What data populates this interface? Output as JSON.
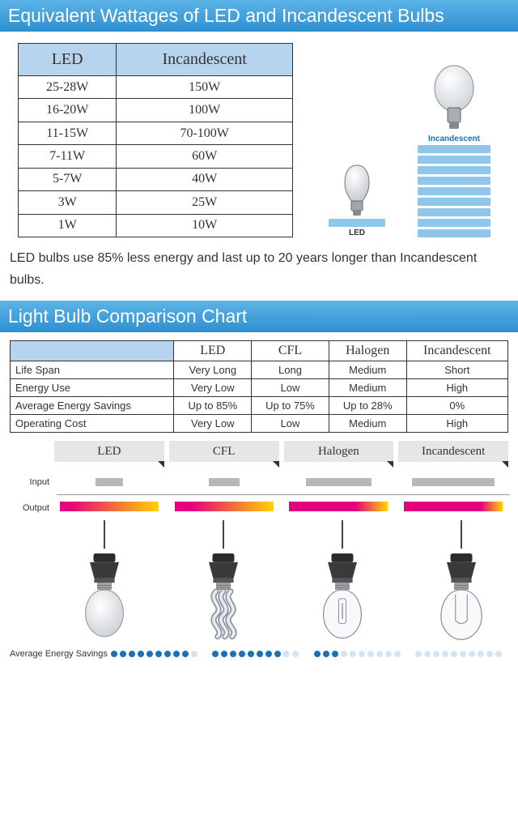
{
  "colors": {
    "title_grad_top": "#5db4e8",
    "title_grad_bottom": "#2e8fd0",
    "th_bg": "#b7d4ee",
    "border": "#333333",
    "bar": "#8fc7ec",
    "input_bar": "#b8b8b8",
    "output_hot": "#e5007e",
    "output_warm_end": "#ffd500",
    "dot_on": "#1b70b6",
    "dot_off": "#d6e4ef",
    "tab_bg": "#e6e6e6"
  },
  "title1": "Equivalent Wattages of LED and Incandescent Bulbs",
  "wattage": {
    "headers": [
      "LED",
      "Incandescent"
    ],
    "rows": [
      [
        "25-28W",
        "150W"
      ],
      [
        "16-20W",
        "100W"
      ],
      [
        "11-15W",
        "70-100W"
      ],
      [
        "7-11W",
        "60W"
      ],
      [
        "5-7W",
        "40W"
      ],
      [
        "3W",
        "25W"
      ],
      [
        "1W",
        "10W"
      ]
    ]
  },
  "stack": {
    "led_label": "LED",
    "inc_label": "Incandescent",
    "led_bars": 1,
    "inc_bars": 9
  },
  "summary": "LED bulbs use 85% less energy and last up to 20 years longer than Incandescent bulbs.",
  "title2": "Light Bulb Comparison Chart",
  "comparison": {
    "columns_corner": "",
    "columns": [
      "LED",
      "CFL",
      "Halogen",
      "Incandescent"
    ],
    "rows": [
      {
        "attr": "Life Span",
        "vals": [
          "Very Long",
          "Long",
          "Medium",
          "Short"
        ]
      },
      {
        "attr": "Energy Use",
        "vals": [
          "Very Low",
          "Low",
          "Medium",
          "High"
        ]
      },
      {
        "attr": "Average Energy Savings",
        "vals": [
          "Up to 85%",
          "Up to 75%",
          "Up to 28%",
          "0%"
        ]
      },
      {
        "attr": "Operating Cost",
        "vals": [
          "Very Low",
          "Low",
          "Medium",
          "High"
        ]
      }
    ]
  },
  "io": {
    "tabs": [
      "LED",
      "CFL",
      "Halogen",
      "Incandescent"
    ],
    "input_label": "Input",
    "output_label": "Output",
    "input_widths_pct": [
      25,
      28,
      60,
      75
    ],
    "output_widths_pct": [
      90,
      90,
      90,
      90
    ],
    "output_warm_pct": [
      82,
      75,
      30,
      20
    ]
  },
  "bulb_types": [
    "led",
    "cfl",
    "halogen",
    "incandescent"
  ],
  "savings": {
    "label": "Average Energy Savings",
    "total_dots": 10,
    "filled": [
      9,
      8,
      3,
      0
    ]
  }
}
